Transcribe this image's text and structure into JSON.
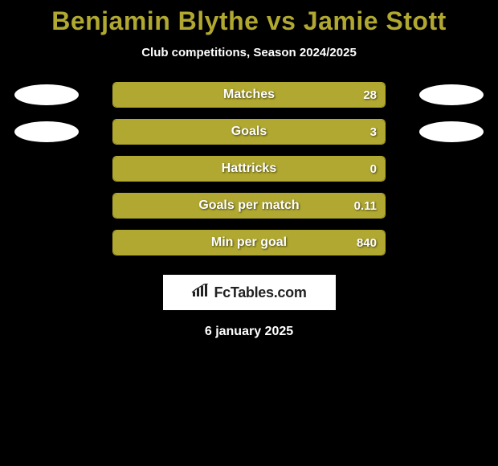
{
  "title": "Benjamin Blythe vs Jamie Stott",
  "subtitle": "Club competitions, Season 2024/2025",
  "date": "6 january 2025",
  "branding": "FcTables.com",
  "colors": {
    "background": "#000000",
    "accent": "#b0a830",
    "text": "#ffffff",
    "ellipse": "#ffffff",
    "brand_bg": "#ffffff",
    "brand_text": "#222222"
  },
  "bar": {
    "track_width": 340,
    "track_height": 32,
    "border_radius": 5
  },
  "ellipse_rows": [
    0,
    1
  ],
  "stats": [
    {
      "label": "Matches",
      "value": "28",
      "fill_pct": 100
    },
    {
      "label": "Goals",
      "value": "3",
      "fill_pct": 100
    },
    {
      "label": "Hattricks",
      "value": "0",
      "fill_pct": 100
    },
    {
      "label": "Goals per match",
      "value": "0.11",
      "fill_pct": 100
    },
    {
      "label": "Min per goal",
      "value": "840",
      "fill_pct": 100
    }
  ]
}
